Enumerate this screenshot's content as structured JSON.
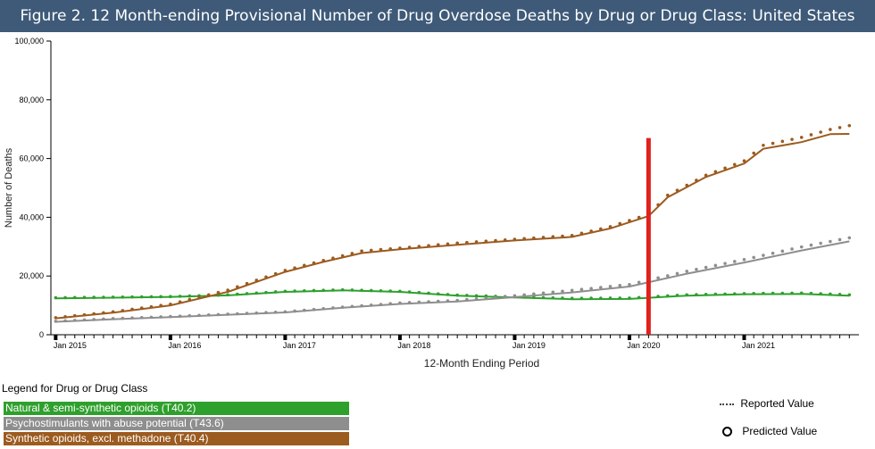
{
  "title": "Figure 2. 12 Month-ending Provisional Number of Drug Overdose Deaths by Drug or Drug Class: United States",
  "chart_data": {
    "type": "line",
    "xlabel": "12-Month Ending Period",
    "ylabel": "Number of Deaths",
    "ylim": [
      0,
      100000
    ],
    "yticks": [
      0,
      20000,
      40000,
      60000,
      80000,
      100000
    ],
    "ytick_labels": [
      "0",
      "20,000",
      "40,000",
      "60,000",
      "80,000",
      "100,000"
    ],
    "xtick_labels": [
      "Jan 2015",
      "Jan 2016",
      "Jan 2017",
      "Jan 2018",
      "Jan 2019",
      "Jan 2020",
      "Jan 2021"
    ],
    "x_month_index": [
      0,
      12,
      24,
      36,
      48,
      60,
      72
    ],
    "x_range": [
      -0.5,
      84
    ],
    "marker_month": 62,
    "marker_value": 67000,
    "series": [
      {
        "name": "Natural & semi-synthetic opioids (T40.2)",
        "color": "#2ea02c",
        "reported": [
          [
            0,
            12400
          ],
          [
            6,
            12600
          ],
          [
            12,
            12900
          ],
          [
            18,
            13400
          ],
          [
            24,
            14600
          ],
          [
            30,
            15100
          ],
          [
            36,
            14600
          ],
          [
            42,
            13300
          ],
          [
            48,
            12700
          ],
          [
            54,
            12100
          ],
          [
            60,
            12200
          ],
          [
            66,
            13300
          ],
          [
            72,
            13800
          ],
          [
            78,
            13900
          ],
          [
            83,
            13300
          ]
        ],
        "predicted": [
          [
            0,
            12600
          ],
          [
            6,
            12800
          ],
          [
            12,
            13000
          ],
          [
            18,
            13600
          ],
          [
            24,
            14800
          ],
          [
            30,
            15300
          ],
          [
            36,
            14800
          ],
          [
            42,
            13500
          ],
          [
            48,
            12900
          ],
          [
            54,
            12400
          ],
          [
            60,
            12500
          ],
          [
            66,
            13600
          ],
          [
            72,
            14000
          ],
          [
            78,
            14200
          ],
          [
            83,
            13600
          ]
        ]
      },
      {
        "name": "Psychostimulants with abuse potential (T43.6)",
        "color": "#8e8e8e",
        "reported": [
          [
            0,
            4400
          ],
          [
            6,
            5300
          ],
          [
            12,
            6000
          ],
          [
            18,
            6800
          ],
          [
            24,
            7600
          ],
          [
            30,
            9200
          ],
          [
            36,
            10500
          ],
          [
            42,
            11300
          ],
          [
            48,
            12800
          ],
          [
            54,
            14400
          ],
          [
            60,
            16400
          ],
          [
            66,
            20800
          ],
          [
            72,
            24600
          ],
          [
            78,
            28700
          ],
          [
            83,
            31800
          ]
        ],
        "predicted": [
          [
            0,
            4600
          ],
          [
            6,
            5500
          ],
          [
            12,
            6200
          ],
          [
            18,
            7000
          ],
          [
            24,
            7800
          ],
          [
            30,
            9400
          ],
          [
            36,
            10800
          ],
          [
            42,
            11700
          ],
          [
            48,
            13300
          ],
          [
            54,
            15100
          ],
          [
            60,
            17100
          ],
          [
            66,
            21600
          ],
          [
            72,
            25600
          ],
          [
            78,
            29900
          ],
          [
            83,
            33000
          ]
        ]
      },
      {
        "name": "Synthetic opioids, excl. methadone (T40.4)",
        "color": "#9c5b1f",
        "reported": [
          [
            0,
            5600
          ],
          [
            6,
            7500
          ],
          [
            12,
            10000
          ],
          [
            18,
            14600
          ],
          [
            24,
            21400
          ],
          [
            28,
            24800
          ],
          [
            32,
            27800
          ],
          [
            36,
            29100
          ],
          [
            42,
            30600
          ],
          [
            48,
            32100
          ],
          [
            54,
            33300
          ],
          [
            58,
            36200
          ],
          [
            62,
            40400
          ],
          [
            64,
            46800
          ],
          [
            68,
            53700
          ],
          [
            72,
            58300
          ],
          [
            74,
            63300
          ],
          [
            78,
            65600
          ],
          [
            81,
            68300
          ],
          [
            83,
            68400
          ]
        ],
        "predicted": [
          [
            0,
            5800
          ],
          [
            6,
            7800
          ],
          [
            12,
            10400
          ],
          [
            18,
            15200
          ],
          [
            24,
            21900
          ],
          [
            28,
            25300
          ],
          [
            32,
            28500
          ],
          [
            36,
            29500
          ],
          [
            42,
            31200
          ],
          [
            48,
            32500
          ],
          [
            54,
            33800
          ],
          [
            58,
            36800
          ],
          [
            62,
            41000
          ],
          [
            64,
            47500
          ],
          [
            68,
            54300
          ],
          [
            72,
            59200
          ],
          [
            74,
            64500
          ],
          [
            78,
            67200
          ],
          [
            81,
            69900
          ],
          [
            83,
            71200
          ]
        ]
      }
    ]
  },
  "legend": {
    "title": "Legend for Drug or Drug Class",
    "reported_label": "Reported Value",
    "predicted_label": "Predicted Value"
  }
}
